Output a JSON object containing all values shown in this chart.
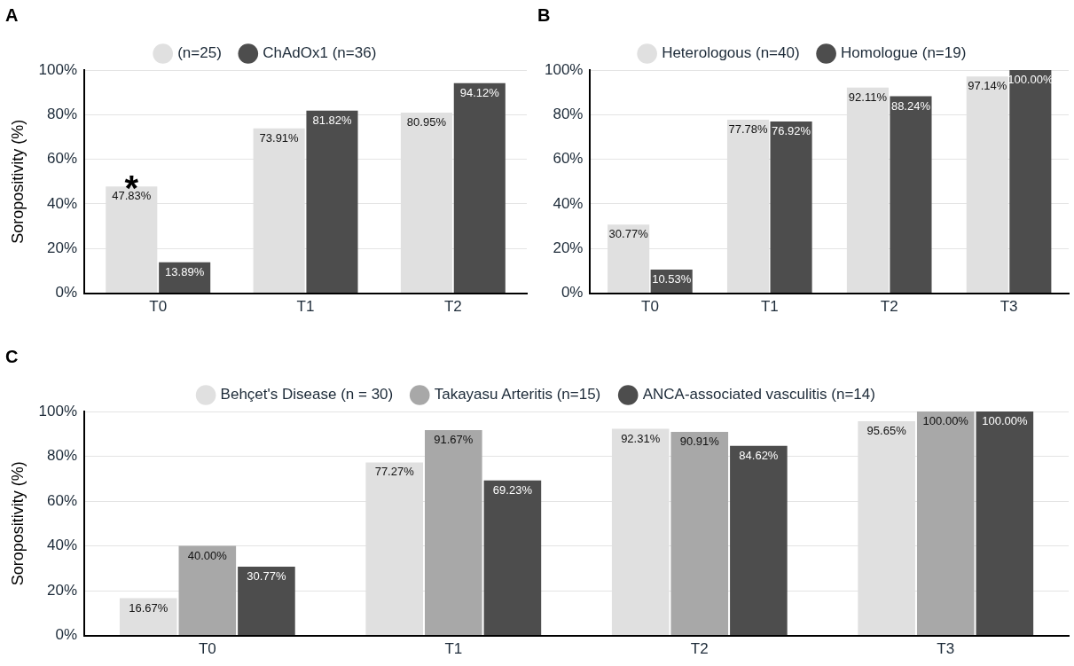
{
  "chart_data": [
    {
      "type": "bar",
      "title": "A",
      "ylabel": "Soropositivity (%)",
      "categories": [
        "T0",
        "T1",
        "T2"
      ],
      "legend": "top",
      "grid": "y",
      "ylim": [
        0,
        100
      ],
      "yticks": [
        {
          "value": 0,
          "label": "0%"
        },
        {
          "value": 20,
          "label": "20%"
        },
        {
          "value": 40,
          "label": "40%"
        },
        {
          "value": 60,
          "label": "60%"
        },
        {
          "value": 80,
          "label": "80%"
        },
        {
          "value": 100,
          "label": "100%"
        }
      ],
      "series": [
        {
          "name": "(n=25)",
          "color": "#e0e0e0",
          "values": [
            47.83,
            73.91,
            80.95
          ],
          "value_labels": [
            "47.83%",
            "73.91%",
            "80.95%"
          ]
        },
        {
          "name": "ChAdOx1 (n=36)",
          "color": "#4d4d4d",
          "values": [
            13.89,
            81.82,
            94.12
          ],
          "value_labels": [
            "13.89%",
            "81.82%",
            "94.12%"
          ]
        }
      ],
      "annotations": [
        {
          "text": "*",
          "x": "T0",
          "y": 47.83
        }
      ]
    },
    {
      "type": "bar",
      "title": "B",
      "categories": [
        "T0",
        "T1",
        "T2",
        "T3"
      ],
      "legend": "top",
      "grid": "y",
      "ylim": [
        0,
        100
      ],
      "yticks": [
        {
          "value": 0,
          "label": "0%"
        },
        {
          "value": 20,
          "label": "20%"
        },
        {
          "value": 40,
          "label": "40%"
        },
        {
          "value": 60,
          "label": "60%"
        },
        {
          "value": 80,
          "label": "80%"
        },
        {
          "value": 100,
          "label": "100%"
        }
      ],
      "series": [
        {
          "name": "Heterologous (n=40)",
          "color": "#e0e0e0",
          "values": [
            30.77,
            77.78,
            92.11,
            97.14
          ],
          "value_labels": [
            "30.77%",
            "77.78%",
            "92.11%",
            "97.14%"
          ]
        },
        {
          "name": "Homologue (n=19)",
          "color": "#4d4d4d",
          "values": [
            10.53,
            76.92,
            88.24,
            100
          ],
          "value_labels": [
            "10.53%",
            "76.92%",
            "88.24%",
            "100.00%"
          ]
        }
      ]
    },
    {
      "type": "bar",
      "title": "C",
      "ylabel": "Soropositivity (%)",
      "categories": [
        "T0",
        "T1",
        "T2",
        "T3"
      ],
      "legend": "top",
      "grid": "y",
      "ylim": [
        0,
        100
      ],
      "yticks": [
        {
          "value": 0,
          "label": "0%"
        },
        {
          "value": 20,
          "label": "20%"
        },
        {
          "value": 40,
          "label": "40%"
        },
        {
          "value": 60,
          "label": "60%"
        },
        {
          "value": 80,
          "label": "80%"
        },
        {
          "value": 100,
          "label": "100%"
        }
      ],
      "series": [
        {
          "name": "Behçet's Disease (n = 30)",
          "color": "#e0e0e0",
          "values": [
            16.67,
            77.27,
            92.31,
            95.65
          ],
          "value_labels": [
            "16.67%",
            "77.27%",
            "92.31%",
            "95.65%"
          ]
        },
        {
          "name": "Takayasu Arteritis (n=15)",
          "color": "#a8a8a8",
          "values": [
            40,
            91.67,
            90.91,
            100
          ],
          "value_labels": [
            "40.00%",
            "91.67%",
            "90.91%",
            "100.00%"
          ]
        },
        {
          "name": "ANCA-associated vasculitis (n=14)",
          "color": "#4d4d4d",
          "values": [
            30.77,
            69.23,
            84.62,
            100
          ],
          "value_labels": [
            "30.77%",
            "69.23%",
            "84.62%",
            "100.00%"
          ]
        }
      ]
    }
  ]
}
